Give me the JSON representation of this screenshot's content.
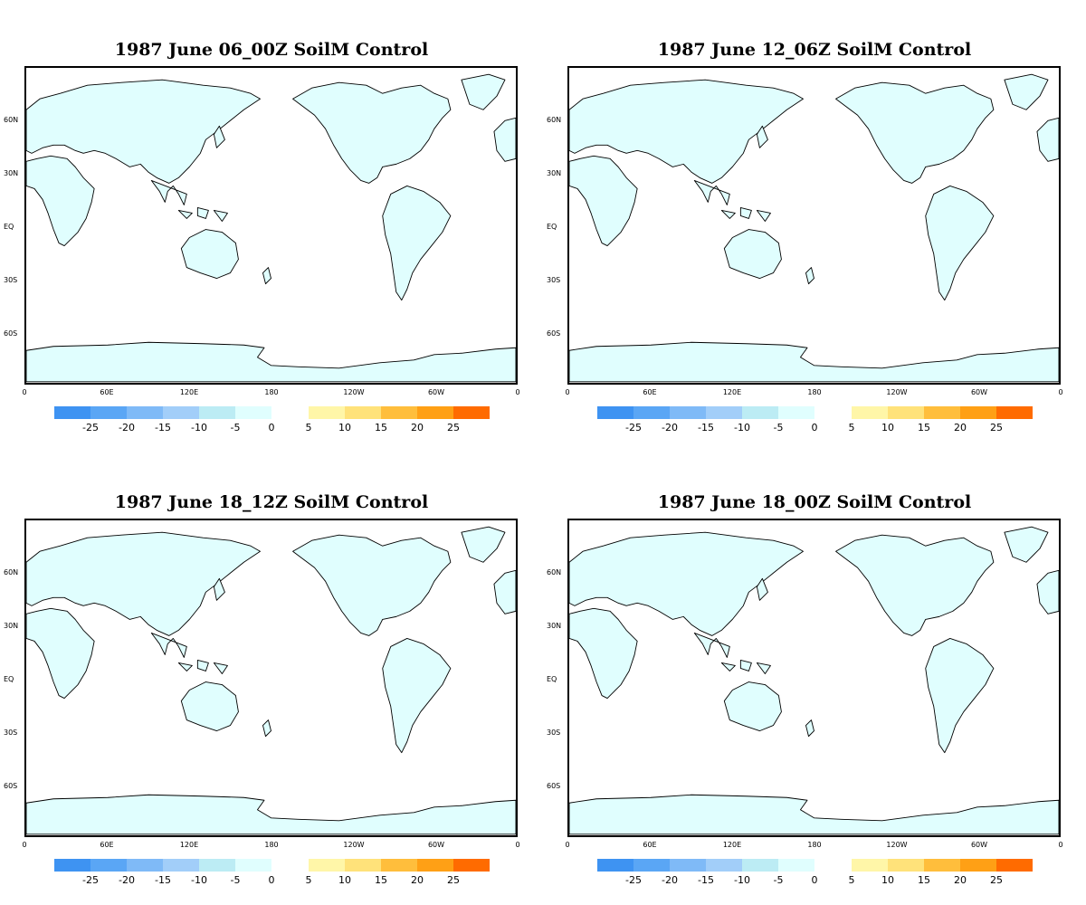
{
  "panels": [
    {
      "title": "1987 June 06_00Z SoilM Control"
    },
    {
      "title": "1987 June 12_06Z SoilM Control"
    },
    {
      "title": "1987 June 18_12Z SoilM Control"
    },
    {
      "title": "1987 June 18_00Z SoilM Control"
    }
  ],
  "lat_labels": [
    "60N",
    "30N",
    "EQ",
    "30S",
    "60S"
  ],
  "lon_labels": [
    "0",
    "60E",
    "120E",
    "180",
    "120W",
    "60W",
    "0"
  ],
  "colorbar": {
    "negative_labels": [
      "-25",
      "-20",
      "-15",
      "-10",
      "-5",
      "0"
    ],
    "positive_labels": [
      "5",
      "10",
      "15",
      "20",
      "25"
    ],
    "negative_colors": [
      "#3e93f2",
      "#5aa6f5",
      "#7fbaf7",
      "#a2cef9",
      "#bcecf4",
      "#e0fefe"
    ],
    "positive_colors": [
      "#fff6a8",
      "#ffe27a",
      "#ffbe3c",
      "#ffa015",
      "#ff6b00",
      "#ff6300"
    ]
  },
  "colors": {
    "land_fill": "#e0fefe",
    "coastline": "#000000"
  }
}
